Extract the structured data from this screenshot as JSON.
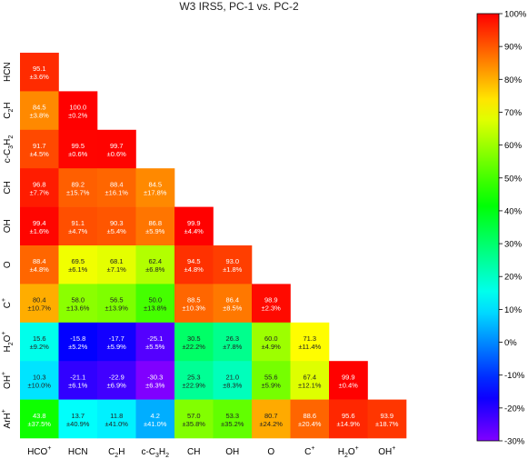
{
  "chart_data": {
    "type": "heatmap",
    "title": "W3 IRS5, PC-1 vs. PC-2",
    "x_labels": [
      {
        "base": "HCO",
        "sub": "",
        "sup": "+"
      },
      {
        "base": "HCN",
        "sub": "",
        "sup": ""
      },
      {
        "base": "C",
        "sub": "2",
        "tail": "H",
        "sup": ""
      },
      {
        "base": "c-C",
        "sub": "3",
        "tail": "H",
        "sub2": "2",
        "sup": ""
      },
      {
        "base": "CH",
        "sub": "",
        "sup": ""
      },
      {
        "base": "OH",
        "sub": "",
        "sup": ""
      },
      {
        "base": "O",
        "sub": "",
        "sup": ""
      },
      {
        "base": "C",
        "sub": "",
        "sup": "+"
      },
      {
        "base": "H",
        "sub": "2",
        "tail": "O",
        "sup": "+"
      },
      {
        "base": "OH",
        "sub": "",
        "sup": "+"
      }
    ],
    "y_labels": [
      {
        "base": "HCN",
        "sub": "",
        "sup": ""
      },
      {
        "base": "C",
        "sub": "2",
        "tail": "H",
        "sup": ""
      },
      {
        "base": "c-C",
        "sub": "3",
        "tail": "H",
        "sub2": "2",
        "sup": ""
      },
      {
        "base": "CH",
        "sub": "",
        "sup": ""
      },
      {
        "base": "OH",
        "sub": "",
        "sup": ""
      },
      {
        "base": "O",
        "sub": "",
        "sup": ""
      },
      {
        "base": "C",
        "sub": "",
        "sup": "+"
      },
      {
        "base": "H",
        "sub": "2",
        "tail": "O",
        "sup": "+"
      },
      {
        "base": "OH",
        "sub": "",
        "sup": "+"
      },
      {
        "base": "ArH",
        "sub": "",
        "sup": "+"
      }
    ],
    "cells": [
      [
        [
          95.1,
          "95.1",
          "±3.6%"
        ]
      ],
      [
        [
          84.5,
          "84.5",
          "±3.8%"
        ],
        [
          100.0,
          "100.0",
          "±0.2%"
        ]
      ],
      [
        [
          91.7,
          "91.7",
          "±4.5%"
        ],
        [
          99.5,
          "99.5",
          "±0.6%"
        ],
        [
          99.7,
          "99.7",
          "±0.6%"
        ]
      ],
      [
        [
          96.8,
          "96.8",
          "±7.7%"
        ],
        [
          89.2,
          "89.2",
          "±15.7%"
        ],
        [
          88.4,
          "88.4",
          "±16.1%"
        ],
        [
          84.5,
          "84.5",
          "±17.8%"
        ]
      ],
      [
        [
          99.4,
          "99.4",
          "±1.6%"
        ],
        [
          91.1,
          "91.1",
          "±4.7%"
        ],
        [
          90.3,
          "90.3",
          "±5.4%"
        ],
        [
          86.8,
          "86.8",
          "±5.9%"
        ],
        [
          99.9,
          "99.9",
          "±4.4%"
        ]
      ],
      [
        [
          88.4,
          "88.4",
          "±4.8%"
        ],
        [
          69.5,
          "69.5",
          "±6.1%"
        ],
        [
          68.1,
          "68.1",
          "±7.1%"
        ],
        [
          62.4,
          "62.4",
          "±6.8%"
        ],
        [
          94.5,
          "94.5",
          "±4.8%"
        ],
        [
          93.0,
          "93.0",
          "±1.8%"
        ]
      ],
      [
        [
          80.4,
          "80.4",
          "±10.7%"
        ],
        [
          58.0,
          "58.0",
          "±13.6%"
        ],
        [
          56.5,
          "56.5",
          "±13.9%"
        ],
        [
          50.0,
          "50.0",
          "±13.8%"
        ],
        [
          88.5,
          "88.5",
          "±10.3%"
        ],
        [
          86.4,
          "86.4",
          "±8.5%"
        ],
        [
          98.9,
          "98.9",
          "±2.3%"
        ]
      ],
      [
        [
          15.6,
          "15.6",
          "±9.2%"
        ],
        [
          -15.8,
          "-15.8",
          "±5.2%"
        ],
        [
          -17.7,
          "-17.7",
          "±5.9%"
        ],
        [
          -25.1,
          "-25.1",
          "±5.5%"
        ],
        [
          30.5,
          "30.5",
          "±22.2%"
        ],
        [
          26.3,
          "26.3",
          "±7.8%"
        ],
        [
          60.0,
          "60.0",
          "±4.9%"
        ],
        [
          71.3,
          "71.3",
          "±11.4%"
        ]
      ],
      [
        [
          10.3,
          "10.3",
          "±10.0%"
        ],
        [
          -21.1,
          "-21.1",
          "±6.1%"
        ],
        [
          -22.9,
          "-22.9",
          "±6.9%"
        ],
        [
          -30.3,
          "-30.3",
          "±6.3%"
        ],
        [
          25.3,
          "25.3",
          "±22.9%"
        ],
        [
          21.0,
          "21.0",
          "±8.3%"
        ],
        [
          55.6,
          "55.6",
          "±5.9%"
        ],
        [
          67.4,
          "67.4",
          "±12.1%"
        ],
        [
          99.9,
          "99.9",
          "±0.4%"
        ]
      ],
      [
        [
          43.8,
          "43.8",
          "±37.5%"
        ],
        [
          13.7,
          "13.7",
          "±40.9%"
        ],
        [
          11.8,
          "11.8",
          "±41.0%"
        ],
        [
          4.2,
          "4.2",
          "±41.0%"
        ],
        [
          57.0,
          "57.0",
          "±35.8%"
        ],
        [
          53.3,
          "53.3",
          "±35.2%"
        ],
        [
          80.7,
          "80.7",
          "±24.2%"
        ],
        [
          88.6,
          "88.6",
          "±20.4%"
        ],
        [
          95.6,
          "95.6",
          "±14.9%"
        ],
        [
          93.9,
          "93.9",
          "±18.7%"
        ]
      ]
    ],
    "colorbar": {
      "range": [
        -30,
        100
      ],
      "ticks": [
        100,
        90,
        80,
        70,
        60,
        50,
        40,
        30,
        20,
        10,
        0,
        -10,
        -20,
        -30
      ],
      "tick_labels": [
        "100%",
        "90%",
        "80%",
        "70%",
        "60%",
        "50%",
        "40%",
        "30%",
        "20%",
        "10%",
        "0%",
        "-10%",
        "-20%",
        "-30%"
      ],
      "colormap": "rainbow"
    }
  }
}
